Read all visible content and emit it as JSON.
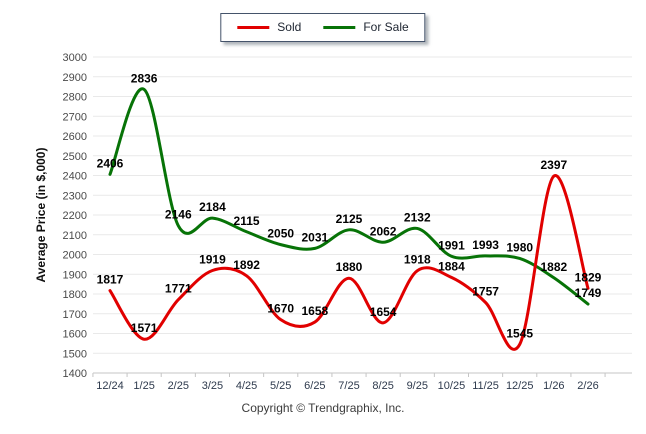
{
  "chart_data": {
    "type": "line",
    "x": [
      "12/24",
      "1/25",
      "2/25",
      "3/25",
      "4/25",
      "5/25",
      "6/25",
      "7/25",
      "8/25",
      "9/25",
      "10/25",
      "11/25",
      "12/25",
      "1/26",
      "2/26"
    ],
    "series": [
      {
        "name": "Sold",
        "color": "#e10000",
        "values": [
          1817,
          1571,
          1771,
          1919,
          1892,
          1670,
          1658,
          1880,
          1654,
          1918,
          1884,
          1757,
          1545,
          2397,
          1829
        ]
      },
      {
        "name": "For Sale",
        "color": "#077307",
        "values": [
          2406,
          2836,
          2146,
          2184,
          2115,
          2050,
          2031,
          2125,
          2062,
          2132,
          1991,
          1993,
          1980,
          1882,
          1749
        ]
      }
    ],
    "ylabel": "Average Price (in $,000)",
    "ylim": [
      1400,
      3000
    ],
    "yticks": [
      1400,
      1500,
      1600,
      1700,
      1800,
      1900,
      2000,
      2100,
      2200,
      2300,
      2400,
      2500,
      2600,
      2700,
      2800,
      2900,
      3000
    ],
    "grid": true,
    "legend_position": "top-center",
    "point_labels": true
  },
  "footer": {
    "copyright": "Copyright © Trendgraphix, Inc."
  },
  "style_colors": {
    "gridline": "#e9e9e9",
    "axis": "#c5c5c5",
    "y_tick_text": "#4a4a4a",
    "x_tick_text": "#2e3a4d",
    "data_label": "#000000"
  }
}
